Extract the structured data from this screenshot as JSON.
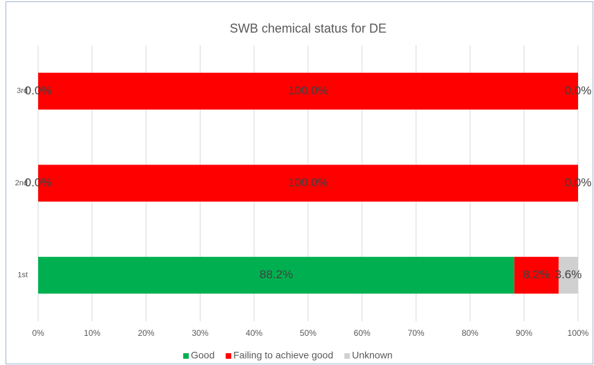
{
  "chart_data": {
    "type": "stacked_barh",
    "title": "SWB chemical status for DE",
    "categories": [
      "1st",
      "2nd",
      "3rd"
    ],
    "series": [
      {
        "name": "Good",
        "color": "#00b050",
        "values": [
          88.2,
          0,
          0
        ],
        "value_labels": [
          "88.2%",
          "0.0%",
          "0.0%"
        ]
      },
      {
        "name": "Failing to achieve good",
        "color": "#ff0000",
        "values": [
          8.2,
          100,
          100
        ],
        "value_labels": [
          "8.2%",
          "100.0%",
          "100.0%"
        ]
      },
      {
        "name": "Unknown",
        "color": "#d0d0d0",
        "values": [
          3.6,
          0,
          0
        ],
        "value_labels": [
          "3.6%",
          "0.0%",
          "0.0%"
        ]
      }
    ],
    "xlim": [
      0,
      100
    ],
    "xticks": [
      {
        "value": 0,
        "label": "0%"
      },
      {
        "value": 10,
        "label": "10%"
      },
      {
        "value": 20,
        "label": "20%"
      },
      {
        "value": 30,
        "label": "30%"
      },
      {
        "value": 40,
        "label": "40%"
      },
      {
        "value": 50,
        "label": "50%"
      },
      {
        "value": 60,
        "label": "60%"
      },
      {
        "value": 70,
        "label": "70%"
      },
      {
        "value": 80,
        "label": "80%"
      },
      {
        "value": 90,
        "label": "90%"
      },
      {
        "value": 100,
        "label": "100%"
      }
    ],
    "grid": true,
    "legend": "bottom"
  }
}
